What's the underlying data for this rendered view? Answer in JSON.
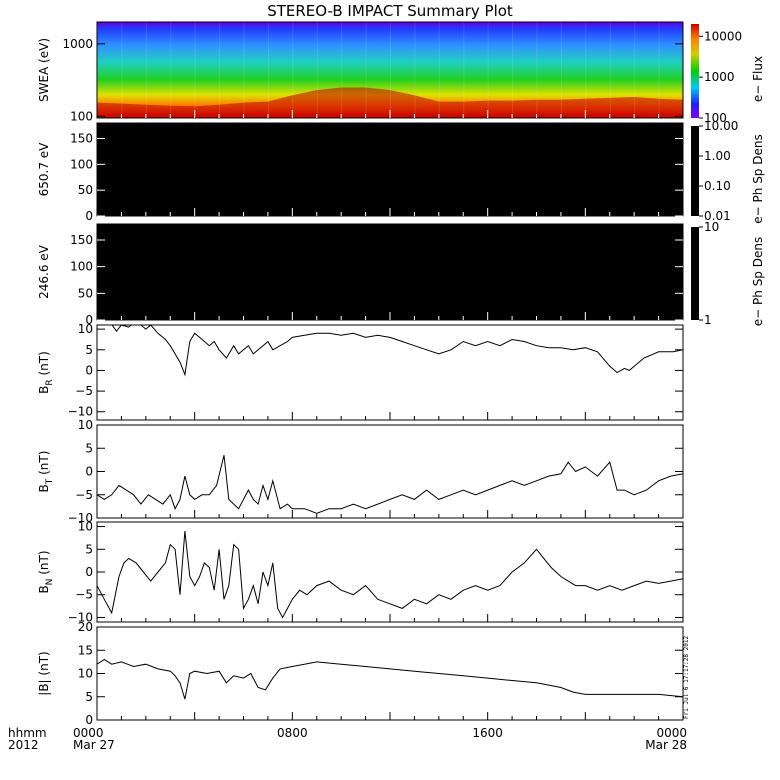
{
  "chart_data": {
    "type": "line",
    "title": "STEREO-B IMPACT Summary Plot",
    "x_axis": {
      "units_label": "hhmm",
      "year_label": "2012",
      "range_hours": [
        0,
        24
      ],
      "ticks": [
        {
          "hour": 0,
          "label": "0000",
          "date": "Mar 27"
        },
        {
          "hour": 8,
          "label": "0800",
          "date": ""
        },
        {
          "hour": 16,
          "label": "1600",
          "date": ""
        },
        {
          "hour": 24,
          "label": "0000",
          "date": "Mar 28"
        }
      ]
    },
    "panels": [
      {
        "id": "swea",
        "kind": "spectrogram",
        "ylabel": "SWEA (eV)",
        "yscale": "log",
        "ylim": [
          95,
          2000
        ],
        "yticks": [
          {
            "v": 100,
            "l": "100"
          },
          {
            "v": 1000,
            "l": "1000"
          }
        ],
        "colorbar": {
          "label": "e− Flux",
          "scale": "log",
          "range": [
            100,
            20000
          ],
          "ticks": [
            {
              "v": 100,
              "l": "100"
            },
            {
              "v": 1000,
              "l": "1000"
            },
            {
              "v": 10000,
              "l": "10000"
            }
          ]
        },
        "boundary_energy_hours": [
          0,
          1,
          2,
          3,
          4,
          5,
          6,
          7,
          8,
          9,
          10,
          11,
          12,
          13,
          14,
          15,
          16,
          17,
          18,
          19,
          20,
          21,
          22,
          23,
          24
        ],
        "boundary_energy_eV": [
          155,
          150,
          145,
          140,
          138,
          145,
          155,
          160,
          195,
          230,
          250,
          250,
          230,
          195,
          160,
          160,
          165,
          165,
          170,
          170,
          175,
          180,
          185,
          175,
          170
        ],
        "colors": {
          "high": "#c00000",
          "mid": "#00c000",
          "low": "#2020ff",
          "top": "#8000ff"
        }
      },
      {
        "id": "pad650",
        "kind": "pitch-angle",
        "ylabel": "650.7 eV",
        "ylim": [
          0,
          180
        ],
        "yticks": [
          {
            "v": 0,
            "l": "0"
          },
          {
            "v": 50,
            "l": "50"
          },
          {
            "v": 100,
            "l": "100"
          },
          {
            "v": 150,
            "l": "150"
          }
        ],
        "colorbar": {
          "label": "e− Ph Sp Dens",
          "scale": "log",
          "range": [
            0.01,
            10
          ],
          "ticks": [
            {
              "v": 10,
              "l": "10.00"
            },
            {
              "v": 1,
              "l": "1.00"
            },
            {
              "v": 0.1,
              "l": "0.10"
            },
            {
              "v": 0.01,
              "l": "0.01"
            }
          ]
        }
      },
      {
        "id": "pad246",
        "kind": "pitch-angle",
        "ylabel": "246.6 eV",
        "ylim": [
          0,
          180
        ],
        "yticks": [
          {
            "v": 0,
            "l": "0"
          },
          {
            "v": 50,
            "l": "50"
          },
          {
            "v": 100,
            "l": "100"
          },
          {
            "v": 150,
            "l": "150"
          }
        ],
        "colorbar": {
          "label": "e− Ph Sp Dens",
          "scale": "log",
          "range": [
            1,
            10
          ],
          "ticks": [
            {
              "v": 10,
              "l": "10"
            },
            {
              "v": 1,
              "l": "1"
            }
          ]
        }
      },
      {
        "id": "br",
        "kind": "line",
        "ylabel": "B",
        "ylabel_sub": "R",
        "ylabel_unit": " (nT)",
        "ylim": [
          -12,
          11
        ],
        "yticks": [
          {
            "v": -10,
            "l": "−10"
          },
          {
            "v": -5,
            "l": "−5"
          },
          {
            "v": 0,
            "l": "0"
          },
          {
            "v": 5,
            "l": "5"
          },
          {
            "v": 10,
            "l": "10"
          }
        ],
        "x": [
          0,
          0.5,
          0.8,
          1.0,
          1.3,
          1.6,
          1.8,
          2.0,
          2.2,
          2.5,
          2.8,
          3.0,
          3.2,
          3.4,
          3.6,
          3.8,
          4.0,
          4.2,
          4.4,
          4.6,
          4.8,
          5.0,
          5.3,
          5.6,
          5.8,
          6.0,
          6.2,
          6.4,
          6.6,
          6.8,
          7.0,
          7.2,
          7.5,
          7.8,
          8.0,
          8.5,
          9.0,
          9.5,
          10.0,
          10.5,
          11.0,
          11.5,
          12.0,
          12.5,
          13.0,
          13.5,
          14.0,
          14.5,
          15.0,
          15.5,
          16.0,
          16.5,
          17.0,
          17.5,
          18.0,
          18.5,
          19.0,
          19.5,
          20.0,
          20.5,
          21.0,
          21.3,
          21.6,
          21.8,
          22.0,
          22.2,
          22.4,
          22.6,
          22.8,
          23.0,
          23.3,
          23.6,
          24.0
        ],
        "y": [
          13,
          12,
          9.5,
          11,
          10.5,
          12,
          11,
          10,
          11,
          9,
          7.5,
          6,
          4,
          2,
          -1,
          7,
          9,
          8,
          7,
          6,
          7,
          5,
          3,
          6,
          4,
          5,
          6,
          4,
          5,
          6,
          7,
          5,
          6,
          7,
          8,
          8.5,
          9,
          9,
          8.5,
          9,
          8,
          8.5,
          8,
          7,
          6,
          5,
          4,
          5,
          7,
          6,
          7,
          6,
          7.5,
          7,
          6,
          5.5,
          5.5,
          5,
          5.5,
          4.5,
          1,
          -0.5,
          0.5,
          0,
          1,
          2,
          3,
          3.5,
          4,
          4.5,
          4.5,
          4.5,
          5
        ]
      },
      {
        "id": "bt",
        "kind": "line",
        "ylabel": "B",
        "ylabel_sub": "T",
        "ylabel_unit": " (nT)",
        "ylim": [
          -10,
          10
        ],
        "yticks": [
          {
            "v": -10,
            "l": "−10"
          },
          {
            "v": -5,
            "l": "−5"
          },
          {
            "v": 0,
            "l": "0"
          },
          {
            "v": 5,
            "l": "5"
          },
          {
            "v": 10,
            "l": "10"
          }
        ],
        "x": [
          0,
          0.3,
          0.6,
          0.9,
          1.2,
          1.5,
          1.8,
          2.1,
          2.4,
          2.7,
          3.0,
          3.2,
          3.4,
          3.6,
          3.8,
          4.0,
          4.3,
          4.6,
          4.9,
          5.2,
          5.4,
          5.6,
          5.8,
          6.0,
          6.2,
          6.4,
          6.6,
          6.8,
          7.0,
          7.2,
          7.5,
          7.8,
          8.0,
          8.5,
          9.0,
          9.5,
          10.0,
          10.5,
          11.0,
          11.5,
          12.0,
          12.5,
          13.0,
          13.5,
          14.0,
          14.5,
          15.0,
          15.5,
          16.0,
          16.5,
          17.0,
          17.5,
          18.0,
          18.5,
          19.0,
          19.3,
          19.6,
          20.0,
          20.5,
          21.0,
          21.3,
          21.6,
          22.0,
          22.5,
          23.0,
          23.5,
          24.0
        ],
        "y": [
          -5,
          -6,
          -5,
          -3,
          -4,
          -5,
          -7,
          -5,
          -6,
          -7,
          -5,
          -8,
          -6,
          -1,
          -5,
          -6,
          -5,
          -5,
          -3,
          3.5,
          -6,
          -7,
          -8,
          -6,
          -4,
          -6,
          -7,
          -3,
          -6,
          -2,
          -8,
          -7,
          -8,
          -8,
          -9,
          -8,
          -8,
          -7,
          -8,
          -7,
          -6,
          -5,
          -6,
          -4,
          -6,
          -5,
          -4,
          -5,
          -4,
          -3,
          -2,
          -3,
          -2,
          -1,
          -0.5,
          2,
          0,
          1,
          -1,
          2,
          -4,
          -4,
          -5,
          -4,
          -2,
          -1,
          -0.5
        ]
      },
      {
        "id": "bn",
        "kind": "line",
        "ylabel": "B",
        "ylabel_sub": "N",
        "ylabel_unit": " (nT)",
        "ylim": [
          -11,
          11
        ],
        "yticks": [
          {
            "v": -10,
            "l": "−10"
          },
          {
            "v": -5,
            "l": "−5"
          },
          {
            "v": 0,
            "l": "0"
          },
          {
            "v": 5,
            "l": "5"
          },
          {
            "v": 10,
            "l": "10"
          }
        ],
        "x": [
          0,
          0.3,
          0.6,
          0.9,
          1.1,
          1.3,
          1.6,
          1.9,
          2.2,
          2.5,
          2.8,
          3.0,
          3.2,
          3.4,
          3.6,
          3.8,
          4.0,
          4.2,
          4.4,
          4.6,
          4.8,
          5.0,
          5.2,
          5.4,
          5.6,
          5.8,
          6.0,
          6.2,
          6.4,
          6.6,
          6.8,
          7.0,
          7.2,
          7.4,
          7.6,
          7.8,
          8.0,
          8.3,
          8.6,
          9.0,
          9.5,
          10.0,
          10.5,
          11.0,
          11.5,
          12.0,
          12.5,
          13.0,
          13.5,
          14.0,
          14.5,
          15.0,
          15.5,
          16.0,
          16.5,
          17.0,
          17.5,
          18.0,
          18.3,
          18.6,
          19.0,
          19.3,
          19.6,
          20.0,
          20.5,
          21.0,
          21.5,
          22.0,
          22.5,
          23.0,
          23.5,
          24.0
        ],
        "y": [
          -3,
          -6,
          -9,
          -1,
          2,
          3,
          2,
          0,
          -2,
          0,
          2,
          6,
          5,
          -5,
          9,
          -1,
          -3,
          -1,
          2,
          1,
          -4,
          5,
          -6,
          -3,
          6,
          5,
          -8,
          -6,
          -3,
          -7,
          0,
          -3,
          2,
          -8,
          -10,
          -8,
          -6,
          -4,
          -5,
          -3,
          -2,
          -4,
          -5,
          -3,
          -6,
          -7,
          -8,
          -6,
          -7,
          -5,
          -6,
          -4,
          -3,
          -4,
          -3,
          0,
          2,
          5,
          3,
          1,
          -1,
          -2,
          -3,
          -3,
          -4,
          -3,
          -4,
          -3,
          -2,
          -2.5,
          -2,
          -1.5
        ]
      },
      {
        "id": "bmag",
        "kind": "line",
        "ylabel": "|B| (nT)",
        "ylim": [
          0,
          20
        ],
        "yticks": [
          {
            "v": 0,
            "l": "0"
          },
          {
            "v": 5,
            "l": "5"
          },
          {
            "v": 10,
            "l": "10"
          },
          {
            "v": 15,
            "l": "15"
          },
          {
            "v": 20,
            "l": "20"
          }
        ],
        "stamp": "Fri Jul  6 17:17:28 2012",
        "x": [
          0,
          0.3,
          0.6,
          1.0,
          1.5,
          2.0,
          2.5,
          3.0,
          3.2,
          3.4,
          3.6,
          3.8,
          4.0,
          4.5,
          5.0,
          5.3,
          5.6,
          6.0,
          6.3,
          6.6,
          6.9,
          7.2,
          7.5,
          8.0,
          8.5,
          9.0,
          10.0,
          11.0,
          12.0,
          13.0,
          14.0,
          15.0,
          16.0,
          17.0,
          18.0,
          18.5,
          19.0,
          19.5,
          20.0,
          20.5,
          21.0,
          22.0,
          23.0,
          24.0
        ],
        "y": [
          12,
          13,
          12,
          12.5,
          11.5,
          12,
          11,
          10.5,
          9.5,
          8,
          4.5,
          10,
          10.5,
          10,
          10.5,
          8,
          9.5,
          9,
          10,
          7,
          6.5,
          9,
          11,
          11.5,
          12,
          12.5,
          12,
          11.5,
          11,
          10.5,
          10,
          9.5,
          9,
          8.5,
          8,
          7.5,
          7,
          6,
          5.5,
          5.5,
          5.5,
          5.5,
          5.5,
          5
        ]
      }
    ]
  }
}
